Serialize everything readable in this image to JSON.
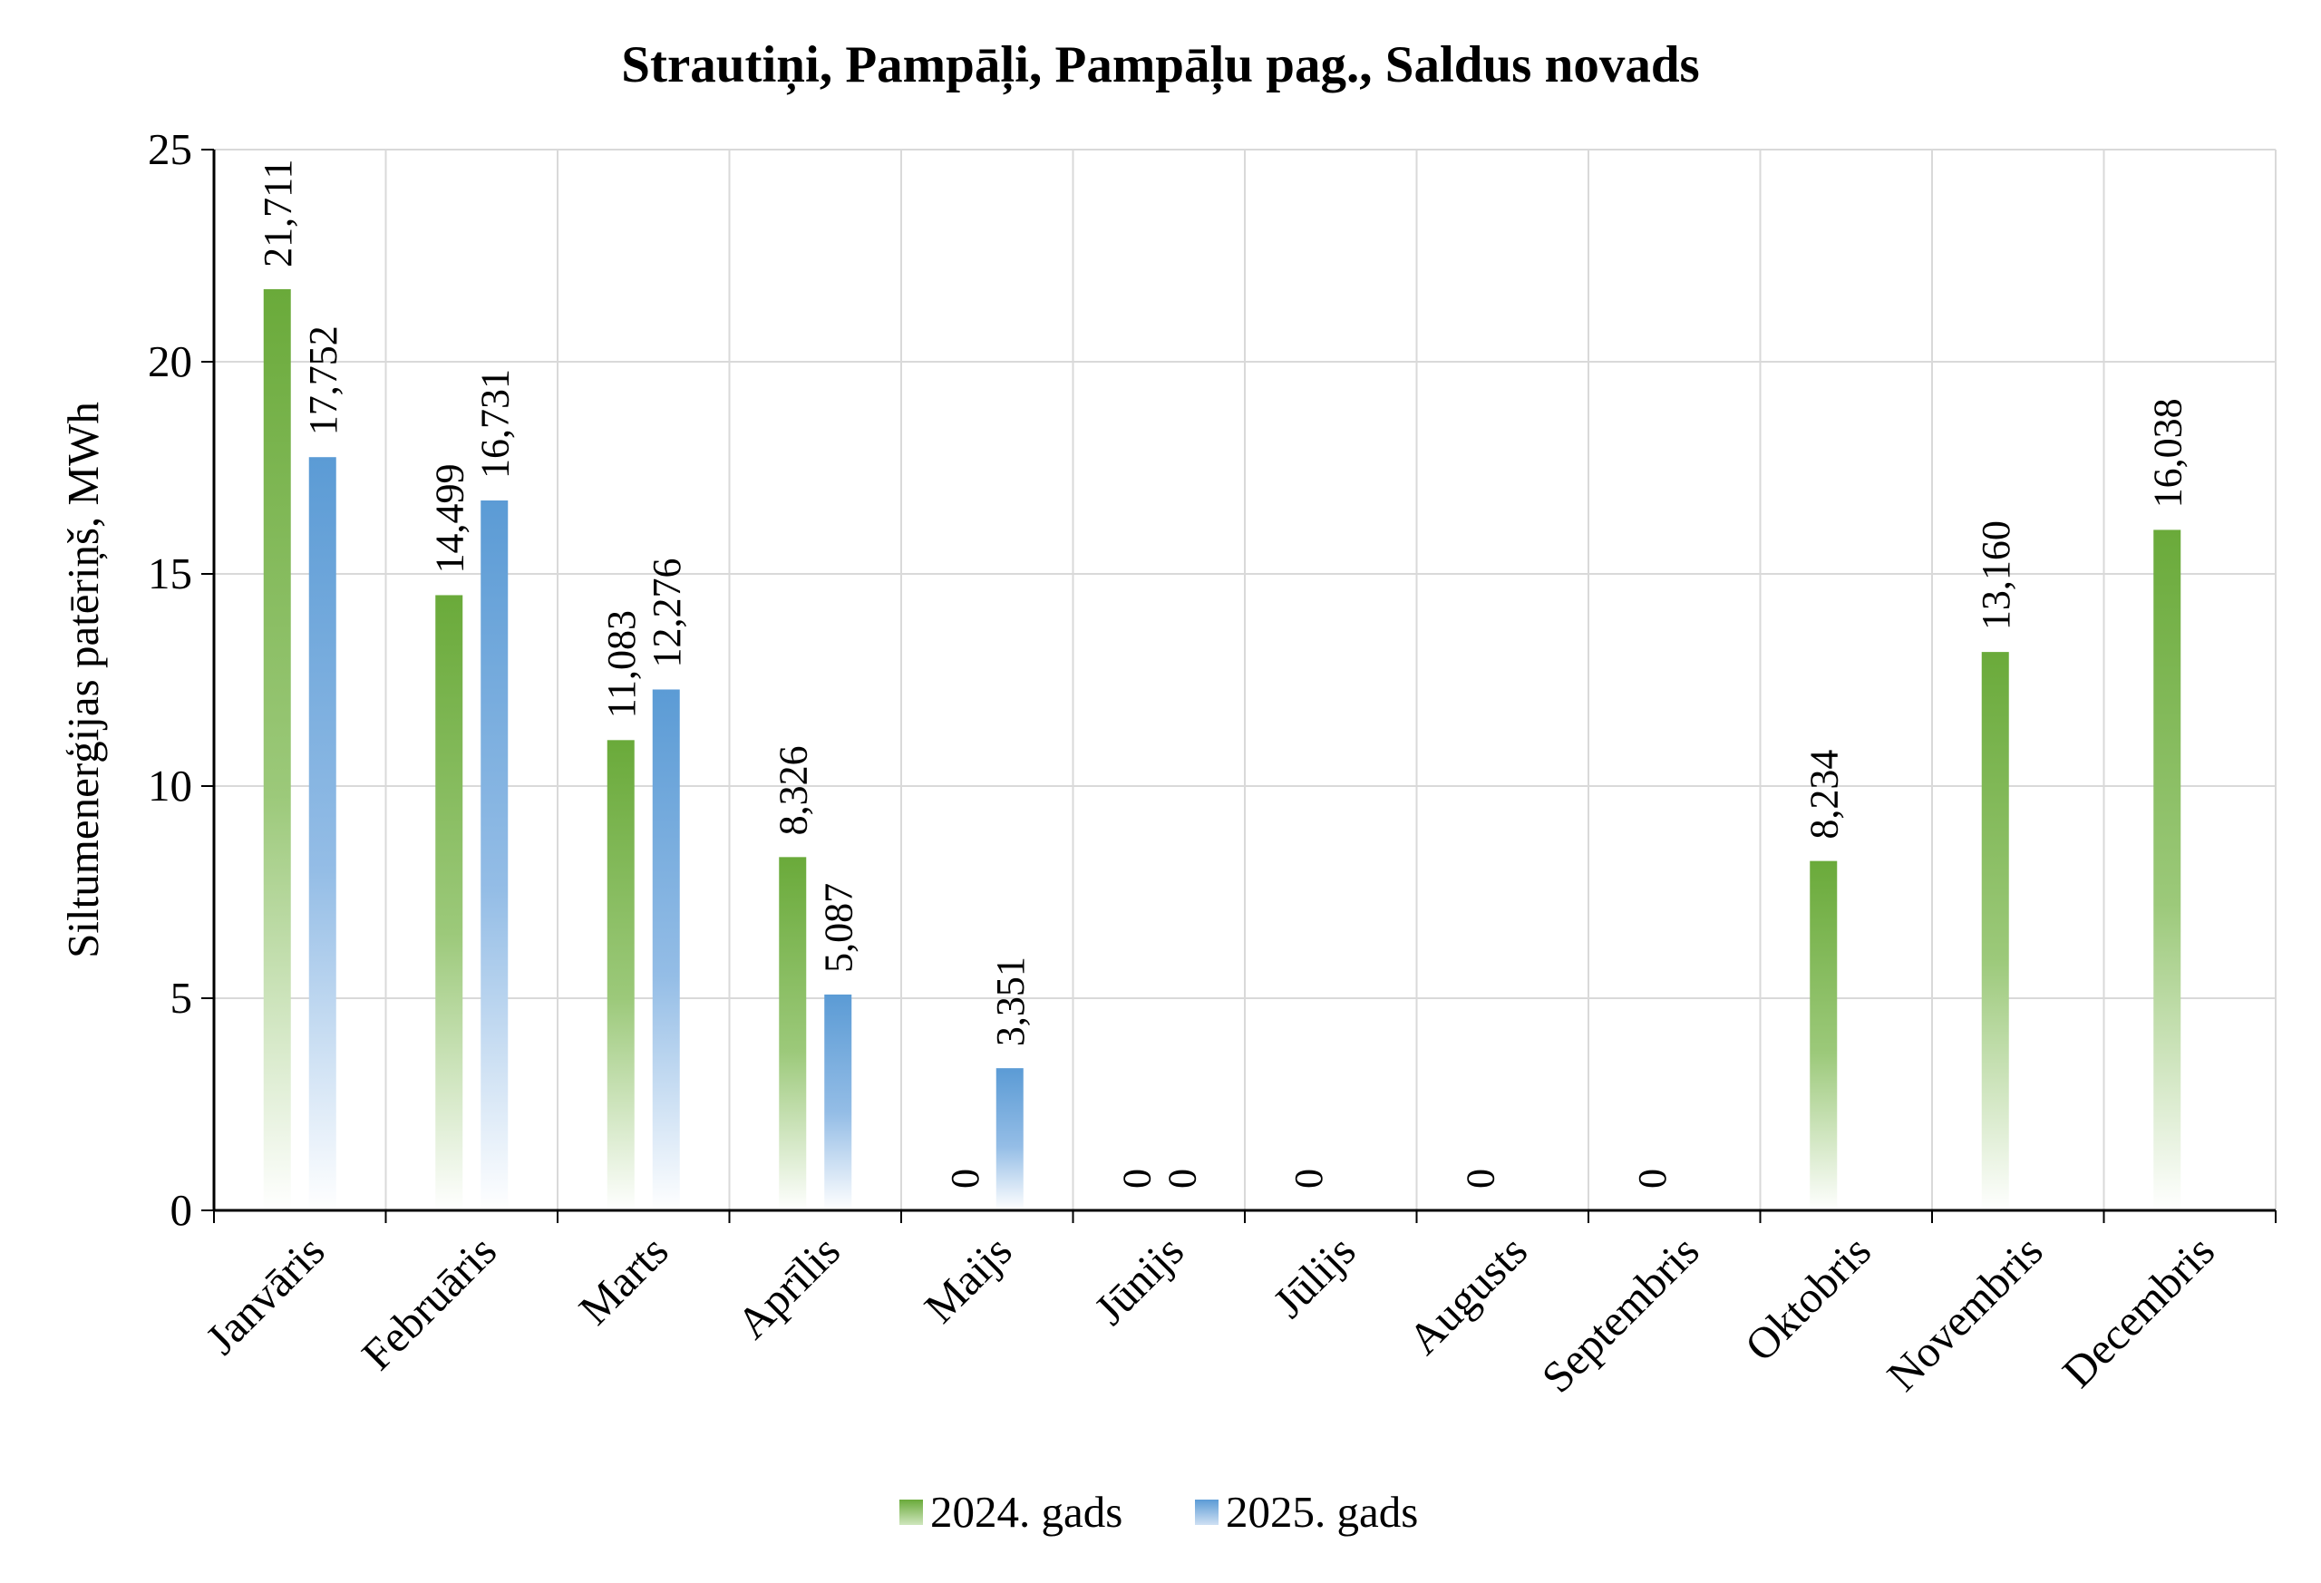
{
  "chart_data": {
    "type": "bar",
    "title": "Strautiņi, Pampāļi, Pampāļu pag., Saldus novads",
    "xlabel": "",
    "ylabel": "Siltumenerģijas patēriņš, MWh",
    "ylim": [
      0,
      25
    ],
    "yticks": [
      0,
      5,
      10,
      15,
      20,
      25
    ],
    "grid": true,
    "legend_position": "bottom",
    "categories": [
      "Janvāris",
      "Februāris",
      "Marts",
      "Aprīlis",
      "Maijs",
      "Jūnijs",
      "Jūlijs",
      "Augusts",
      "Septembris",
      "Oktobris",
      "Novembris",
      "Decembris"
    ],
    "series": [
      {
        "name": "2024. gads",
        "color": "#6aaa3a",
        "values": [
          21.711,
          14.499,
          11.083,
          8.326,
          0,
          0,
          0,
          0,
          0,
          8.234,
          13.16,
          16.038
        ],
        "labels": [
          "21,711",
          "14,499",
          "11,083",
          "8,326",
          "0",
          "0",
          "0",
          "0",
          "0",
          "8,234",
          "13,160",
          "16,038"
        ]
      },
      {
        "name": "2025. gads",
        "color": "#5b9bd5",
        "values": [
          17.752,
          16.731,
          12.276,
          5.087,
          3.351,
          0,
          null,
          null,
          null,
          null,
          null,
          null
        ],
        "labels": [
          "17,752",
          "16,731",
          "12,276",
          "5,087",
          "3,351",
          "0",
          "",
          "",
          "",
          "",
          "",
          ""
        ]
      }
    ]
  }
}
